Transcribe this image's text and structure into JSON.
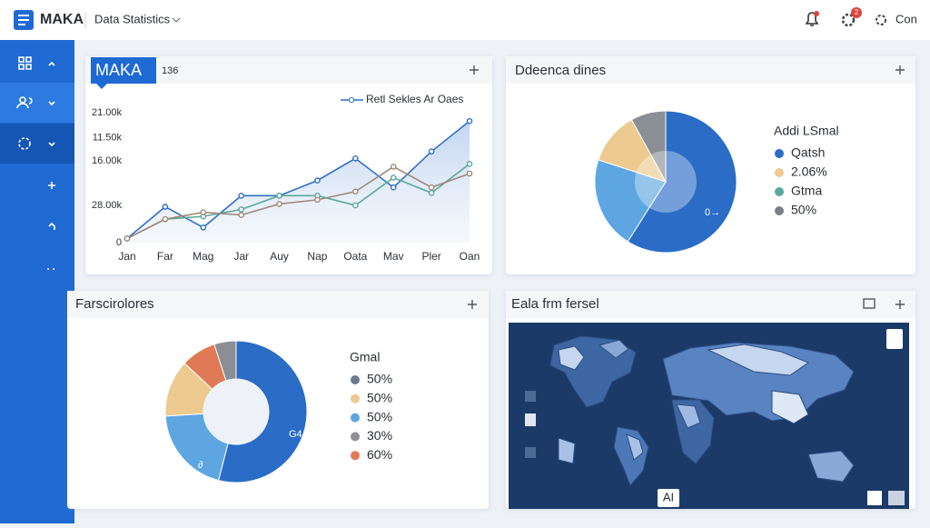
{
  "header": {
    "brand": "MAKA",
    "section": "Data Statistics",
    "notification_badge": "2",
    "user": "Con"
  },
  "chart_data": [
    {
      "type": "line",
      "title": "MAKA",
      "subtitle": "136",
      "categories": [
        "Jan",
        "Far",
        "Mag",
        "Jar",
        "Auy",
        "Nap",
        "Oata",
        "Mav",
        "Pler",
        "Oan"
      ],
      "series": [
        {
          "name": "Retl Sekles Ar Oaes",
          "color": "#2f6fc8",
          "values": [
            3,
            26,
            11,
            34,
            34,
            45,
            61,
            40,
            66,
            88
          ]
        },
        {
          "color": "#5aa89a",
          "values": [
            3,
            17,
            19,
            24,
            34,
            34,
            27,
            47,
            36,
            57
          ]
        },
        {
          "color": "#a08a78",
          "values": [
            3,
            17,
            22,
            20,
            28,
            31,
            37,
            55,
            40,
            50
          ]
        }
      ],
      "ylim": [
        0,
        100
      ],
      "yticks": [
        {
          "value": 94,
          "label": "21.00k"
        },
        {
          "value": 76,
          "label": "11.50k"
        },
        {
          "value": 59,
          "label": "16.00k"
        },
        {
          "value": 27,
          "label": "28.00k"
        },
        0
      ],
      "legend": "top-right"
    },
    {
      "type": "pie",
      "title": "Ddeenca dines",
      "legend_title": "Addi LSmal",
      "categories": [
        "Qatsh",
        "2.06%",
        "Gtma",
        "50%"
      ],
      "values": [
        59,
        21,
        12,
        8
      ],
      "colors": [
        "#2a6cc6",
        "#5ea6e2",
        "#ecca90",
        "#8a8f96"
      ],
      "legend_colors": [
        "#2a6cc6",
        "#ecca90",
        "#5aa89a",
        "#7b8088"
      ],
      "annotation": "0→"
    },
    {
      "type": "donut",
      "title": "Farscirolores",
      "legend_title": "Gmal",
      "categories": [
        "50%",
        "50%",
        "50%",
        "30%",
        "60%"
      ],
      "values": [
        54,
        20,
        13,
        8,
        5
      ],
      "colors": [
        "#2a6cc6",
        "#5ea6e2",
        "#ecca90",
        "#e07a56",
        "#8a8f96"
      ],
      "legend_colors": [
        "#6b7a8c",
        "#ecca90",
        "#5aa7e0",
        "#8a8f98",
        "#e07a56"
      ],
      "annotations": [
        "G4",
        "∂"
      ]
    }
  ],
  "map_panel": {
    "title": "Eala frm fersel",
    "badge": "AI"
  }
}
